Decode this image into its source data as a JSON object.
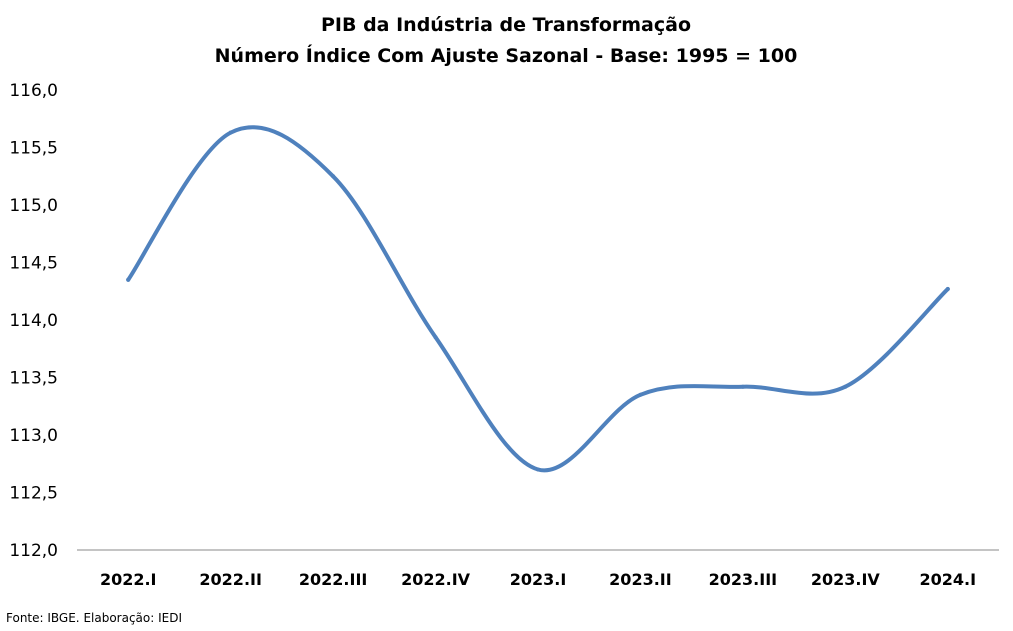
{
  "chart_data": {
    "type": "line",
    "title": "PIB da Indústria de Transformação",
    "subtitle": "Número Índice Com Ajuste Sazonal - Base: 1995 = 100",
    "categories": [
      "2022.I",
      "2022.II",
      "2022.III",
      "2022.IV",
      "2023.I",
      "2023.II",
      "2023.III",
      "2023.IV",
      "2024.I"
    ],
    "series": [
      {
        "values": [
          114.35,
          115.63,
          115.25,
          113.85,
          112.7,
          113.35,
          113.42,
          113.42,
          114.27
        ]
      }
    ],
    "y_ticks": [
      "112,0",
      "112,5",
      "113,0",
      "113,5",
      "114,0",
      "114,5",
      "115,0",
      "115,5",
      "116,0"
    ],
    "ylim": [
      112.0,
      116.0
    ],
    "xlabel": "",
    "ylabel": "",
    "grid": false,
    "legend": "none",
    "line_color": "#4f81bd",
    "axis_color": "#898989"
  },
  "footer": {
    "source": "Fonte: IBGE. Elaboração: IEDI"
  }
}
